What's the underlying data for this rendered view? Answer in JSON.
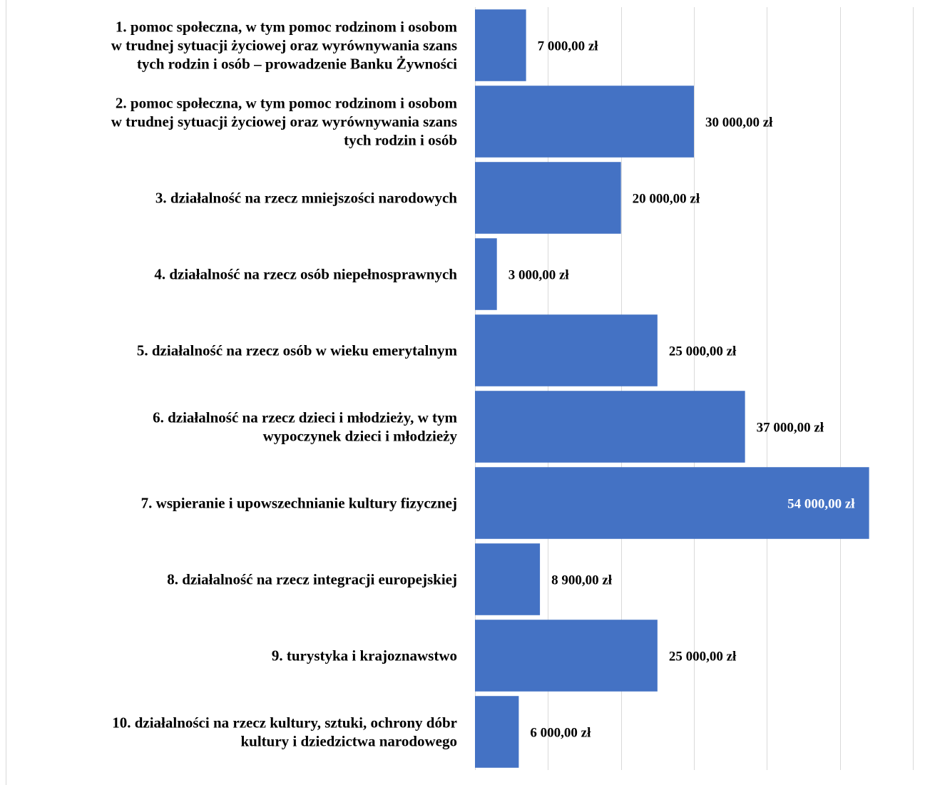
{
  "chart_data": {
    "type": "bar",
    "orientation": "horizontal",
    "categories": [
      [
        "1. pomoc społeczna, w tym pomoc rodzinom i osobom",
        "w trudnej sytuacji życiowej oraz wyrównywania szans",
        "tych rodzin i osób – prowadzenie Banku Żywności"
      ],
      [
        "2. pomoc społeczna, w tym pomoc rodzinom i osobom",
        "w trudnej sytuacji życiowej oraz wyrównywania szans",
        "tych rodzin i osób"
      ],
      [
        "3. działalność na rzecz mniejszości narodowych"
      ],
      [
        "4. działalność na rzecz osób niepełnosprawnych"
      ],
      [
        "5. działalność na rzecz osób w wieku emerytalnym"
      ],
      [
        "6. działalność na rzecz dzieci i młodzieży, w tym",
        "wypoczynek dzieci i młodzieży"
      ],
      [
        "7. wspieranie i upowszechnianie kultury fizycznej"
      ],
      [
        "8. działalność na rzecz integracji europejskiej"
      ],
      [
        "9. turystyka i krajoznawstwo"
      ],
      [
        "10. działalności na rzecz kultury, sztuki, ochrony dóbr",
        "kultury i dziedzictwa narodowego"
      ]
    ],
    "values": [
      7000,
      30000,
      20000,
      3000,
      25000,
      37000,
      54000,
      8900,
      25000,
      6000
    ],
    "data_labels": [
      "7 000,00 zł",
      "30 000,00 zł",
      "20 000,00 zł",
      "3 000,00 zł",
      "25 000,00 zł",
      "37 000,00 zł",
      "54 000,00 zł",
      "8 900,00 zł",
      "25 000,00 zł",
      "6 000,00 zł"
    ],
    "xlim": [
      0,
      60000
    ],
    "grid_step": 10000,
    "grid": true,
    "colors": {
      "bar": "#4472c4",
      "grid": "#d9d9d9",
      "label": "#000000",
      "label_inside": "#ffffff"
    },
    "title": "",
    "xlabel": "",
    "ylabel": ""
  }
}
